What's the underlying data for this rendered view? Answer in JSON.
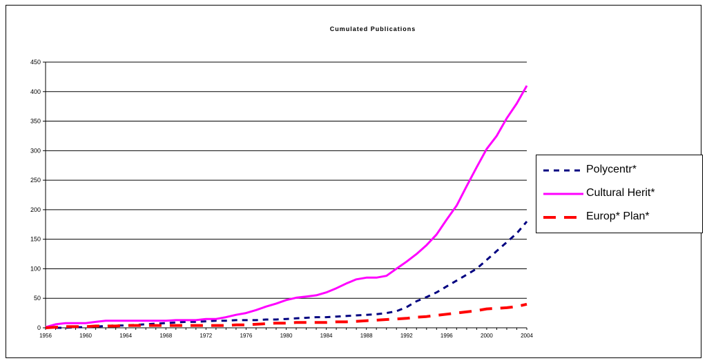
{
  "chart_data": {
    "type": "line",
    "title": "Cumulated Publications",
    "xlabel": "",
    "ylabel": "",
    "ylim": [
      0,
      450
    ],
    "yticks": [
      0,
      50,
      100,
      150,
      200,
      250,
      300,
      350,
      400,
      450
    ],
    "xlim": [
      1956,
      2004
    ],
    "xticks": [
      1956,
      1960,
      1964,
      1968,
      1972,
      1976,
      1980,
      1984,
      1988,
      1992,
      1996,
      2000,
      2004
    ],
    "grid": "horizontal",
    "legend_position": "right",
    "x": [
      1956,
      1957,
      1958,
      1959,
      1960,
      1961,
      1962,
      1963,
      1964,
      1965,
      1966,
      1967,
      1968,
      1969,
      1970,
      1971,
      1972,
      1973,
      1974,
      1975,
      1976,
      1977,
      1978,
      1979,
      1980,
      1981,
      1982,
      1983,
      1984,
      1985,
      1986,
      1987,
      1988,
      1989,
      1990,
      1991,
      1992,
      1993,
      1994,
      1995,
      1996,
      1997,
      1998,
      1999,
      2000,
      2001,
      2002,
      2003,
      2004
    ],
    "series": [
      {
        "name": "Polycentr*",
        "color": "#000080",
        "style": "dotted",
        "values": [
          0,
          0,
          0,
          1,
          1,
          2,
          3,
          4,
          4,
          5,
          6,
          7,
          8,
          9,
          10,
          10,
          11,
          12,
          12,
          13,
          13,
          13,
          14,
          14,
          15,
          16,
          17,
          18,
          18,
          19,
          20,
          21,
          22,
          23,
          25,
          28,
          35,
          45,
          52,
          60,
          70,
          80,
          90,
          100,
          115,
          130,
          145,
          160,
          180
        ]
      },
      {
        "name": "Cultural Herit*",
        "color": "#ff00ff",
        "style": "solid",
        "values": [
          1,
          6,
          8,
          8,
          8,
          10,
          12,
          12,
          12,
          12,
          12,
          12,
          12,
          13,
          13,
          13,
          15,
          15,
          18,
          22,
          25,
          30,
          36,
          41,
          47,
          51,
          53,
          55,
          60,
          67,
          75,
          82,
          85,
          85,
          88,
          100,
          112,
          125,
          140,
          158,
          183,
          207,
          240,
          272,
          303,
          325,
          355,
          380,
          410
        ]
      },
      {
        "name": "Europ* Plan*",
        "color": "#ff0000",
        "style": "dashed",
        "values": [
          0,
          1,
          2,
          2,
          2,
          3,
          3,
          3,
          4,
          4,
          4,
          4,
          4,
          4,
          4,
          4,
          4,
          4,
          4,
          5,
          5,
          6,
          7,
          8,
          8,
          9,
          9,
          9,
          9,
          10,
          10,
          11,
          12,
          13,
          14,
          15,
          16,
          18,
          19,
          21,
          23,
          25,
          27,
          29,
          32,
          33,
          34,
          36,
          40
        ]
      }
    ]
  }
}
